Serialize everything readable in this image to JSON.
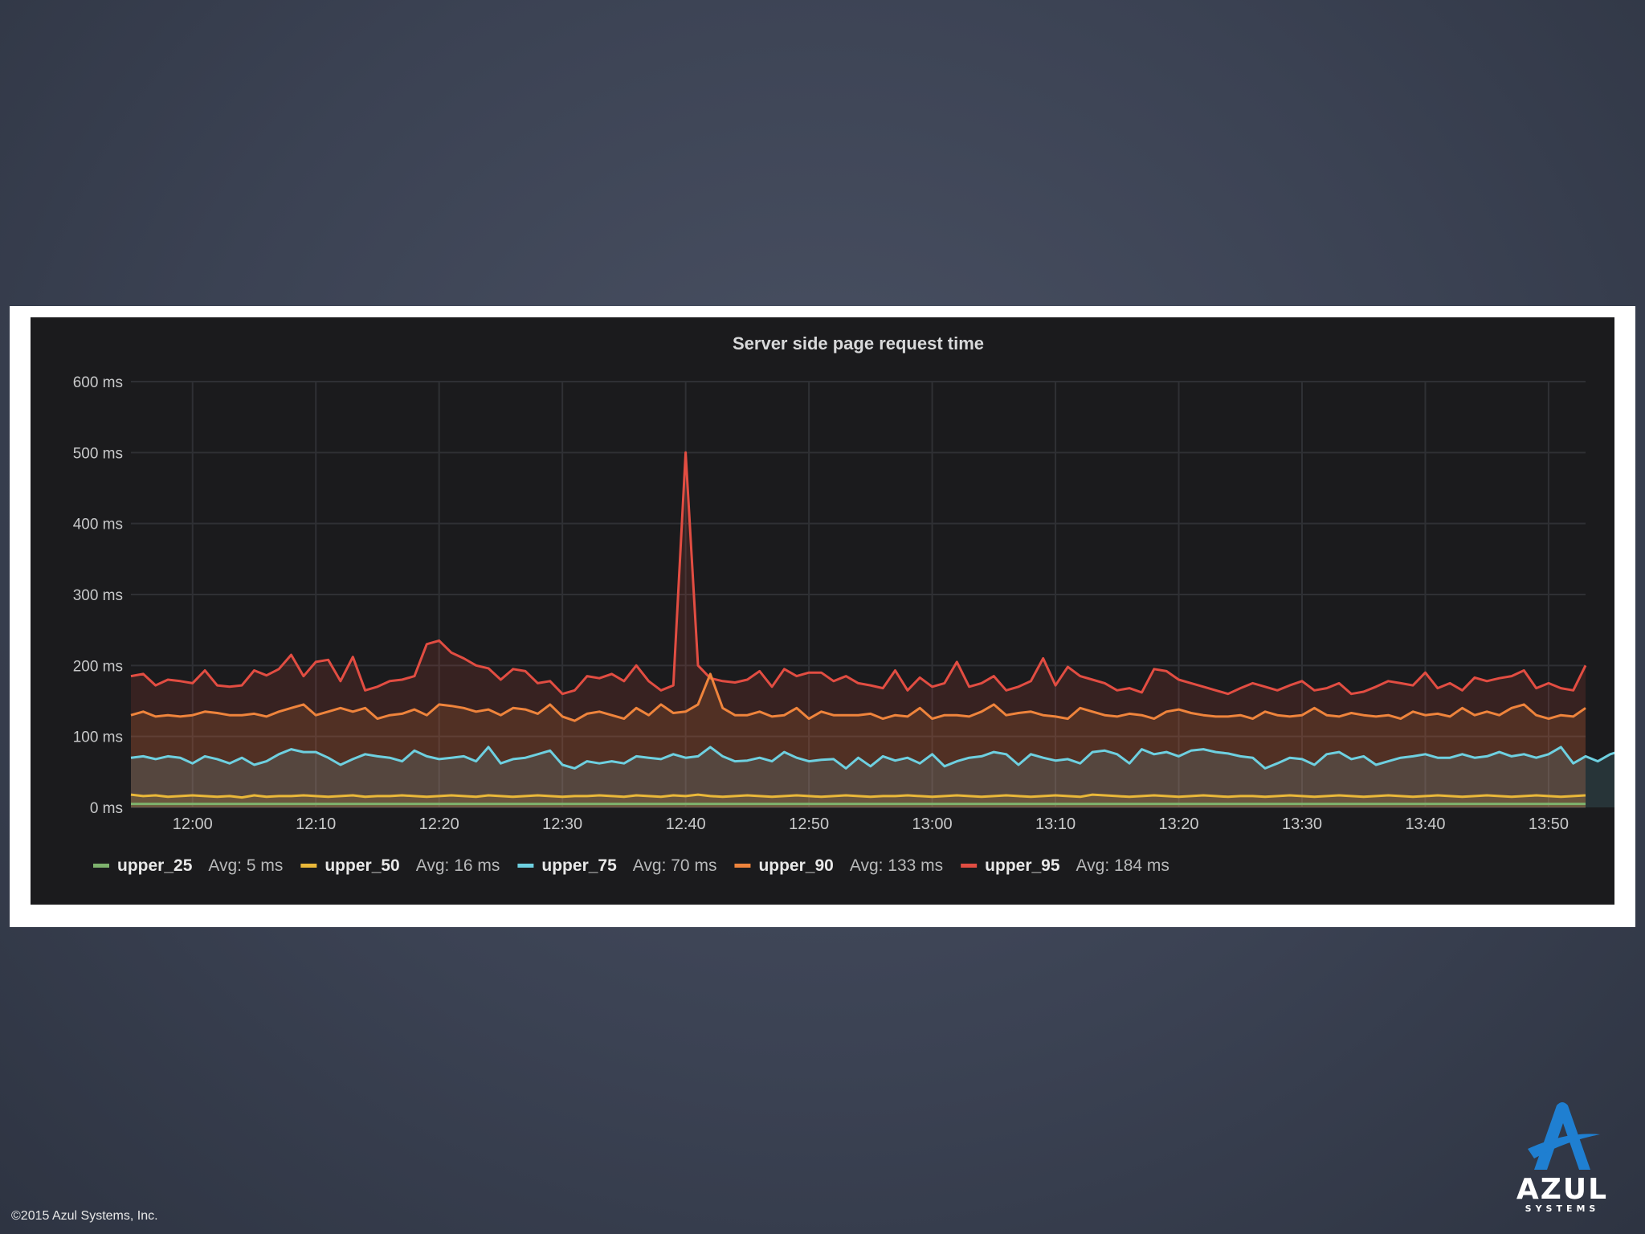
{
  "footer": {
    "copyright": "©2015 Azul Systems, Inc."
  },
  "logo": {
    "word": "AZUL",
    "sub": "SYSTEMS",
    "icon": "azul-a-logo-icon",
    "color": "#1f7fd1"
  },
  "chart_data": {
    "type": "line",
    "title": "Server side page request time",
    "ylim": [
      0,
      600
    ],
    "y_ticks": [
      "0 ms",
      "100 ms",
      "200 ms",
      "300 ms",
      "400 ms",
      "500 ms",
      "600 ms"
    ],
    "y_tick_values": [
      0,
      100,
      200,
      300,
      400,
      500,
      600
    ],
    "x_range_minutes": [
      715,
      833
    ],
    "x_ticks": [
      "12:00",
      "12:10",
      "12:20",
      "12:30",
      "12:40",
      "12:50",
      "13:00",
      "13:10",
      "13:20",
      "13:30",
      "13:40",
      "13:50"
    ],
    "grid": true,
    "legend_position": "bottom",
    "x_start": "11:55",
    "x_step_minutes": 1,
    "series": [
      {
        "name": "upper_95",
        "avg_label": "Avg: 184 ms",
        "color": "#e24d42",
        "fill": true,
        "values": [
          185,
          188,
          172,
          180,
          178,
          175,
          193,
          172,
          170,
          172,
          193,
          186,
          195,
          215,
          185,
          205,
          208,
          178,
          212,
          165,
          170,
          178,
          180,
          185,
          230,
          235,
          218,
          210,
          200,
          196,
          180,
          195,
          192,
          175,
          178,
          160,
          165,
          185,
          182,
          188,
          178,
          200,
          178,
          165,
          172,
          500,
          200,
          182,
          178,
          176,
          180,
          192,
          170,
          195,
          185,
          190,
          190,
          178,
          185,
          175,
          172,
          168,
          193,
          165,
          183,
          170,
          175,
          205,
          170,
          175,
          185,
          165,
          170,
          178,
          210,
          172,
          198,
          185,
          180,
          175,
          165,
          168,
          162,
          195,
          192,
          180,
          175,
          170,
          165,
          160,
          168,
          175,
          170,
          165,
          172,
          178,
          165,
          168,
          175,
          160,
          163,
          170,
          178,
          175,
          172,
          190,
          168,
          175,
          165,
          183,
          178,
          182,
          185,
          193,
          168,
          175,
          168,
          165,
          200
        ]
      },
      {
        "name": "upper_90",
        "avg_label": "Avg: 133 ms",
        "color": "#ef843c",
        "fill": true,
        "values": [
          130,
          135,
          128,
          130,
          128,
          130,
          135,
          133,
          130,
          130,
          132,
          128,
          135,
          140,
          145,
          130,
          135,
          140,
          135,
          140,
          125,
          130,
          132,
          138,
          130,
          145,
          143,
          140,
          135,
          138,
          130,
          140,
          138,
          132,
          145,
          128,
          122,
          132,
          135,
          130,
          125,
          140,
          130,
          145,
          133,
          135,
          145,
          188,
          140,
          130,
          130,
          135,
          128,
          130,
          140,
          125,
          135,
          130,
          130,
          130,
          132,
          125,
          130,
          128,
          140,
          125,
          130,
          130,
          128,
          135,
          145,
          130,
          133,
          135,
          130,
          128,
          125,
          140,
          135,
          130,
          128,
          132,
          130,
          125,
          135,
          138,
          133,
          130,
          128,
          128,
          130,
          125,
          135,
          130,
          128,
          130,
          140,
          130,
          128,
          133,
          130,
          128,
          130,
          125,
          135,
          130,
          132,
          128,
          140,
          130,
          135,
          130,
          140,
          145,
          130,
          125,
          130,
          128,
          140
        ]
      },
      {
        "name": "upper_75",
        "avg_label": "Avg: 70 ms",
        "color": "#6ed0e0",
        "fill": true,
        "values": [
          70,
          72,
          68,
          72,
          70,
          62,
          72,
          68,
          62,
          70,
          60,
          65,
          75,
          82,
          78,
          78,
          70,
          60,
          68,
          75,
          72,
          70,
          65,
          80,
          72,
          68,
          70,
          72,
          65,
          85,
          62,
          68,
          70,
          75,
          80,
          60,
          55,
          65,
          62,
          65,
          62,
          72,
          70,
          68,
          75,
          70,
          72,
          85,
          72,
          65,
          66,
          70,
          65,
          78,
          70,
          65,
          67,
          68,
          55,
          70,
          58,
          72,
          66,
          70,
          62,
          75,
          58,
          65,
          70,
          72,
          78,
          75,
          60,
          75,
          70,
          66,
          68,
          62,
          78,
          80,
          75,
          62,
          82,
          75,
          78,
          72,
          80,
          82,
          78,
          76,
          72,
          70,
          55,
          62,
          70,
          68,
          60,
          75,
          78,
          68,
          72,
          60,
          65,
          70,
          72,
          75,
          70,
          70,
          75,
          70,
          72,
          78,
          72,
          75,
          70,
          75,
          85,
          62,
          72,
          65,
          75,
          80
        ]
      },
      {
        "name": "upper_50",
        "avg_label": "Avg: 16 ms",
        "color": "#eab839",
        "fill": true,
        "values": [
          18,
          16,
          17,
          15,
          16,
          17,
          16,
          15,
          16,
          14,
          17,
          15,
          16,
          16,
          17,
          16,
          15,
          16,
          17,
          15,
          16,
          16,
          17,
          16,
          15,
          16,
          17,
          16,
          15,
          17,
          16,
          15,
          16,
          17,
          16,
          15,
          16,
          16,
          17,
          16,
          15,
          17,
          16,
          15,
          17,
          16,
          18,
          16,
          15,
          16,
          17,
          16,
          15,
          16,
          17,
          16,
          15,
          16,
          17,
          16,
          15,
          16,
          16,
          17,
          16,
          15,
          16,
          17,
          16,
          15,
          16,
          17,
          16,
          15,
          16,
          17,
          16,
          15,
          18,
          17,
          16,
          15,
          16,
          17,
          16,
          15,
          16,
          17,
          16,
          15,
          16,
          16,
          15,
          16,
          17,
          16,
          15,
          16,
          17,
          16,
          15,
          16,
          17,
          16,
          15,
          16,
          17,
          16,
          15,
          16,
          17,
          16,
          15,
          16,
          17,
          16,
          15,
          16,
          17
        ]
      },
      {
        "name": "upper_25",
        "avg_label": "Avg: 5 ms",
        "color": "#7eb26d",
        "fill": false,
        "values": [
          5,
          5,
          5,
          5,
          5,
          5,
          5,
          5,
          5,
          5,
          5,
          5,
          5,
          5,
          5,
          5,
          5,
          5,
          5,
          5,
          5,
          5,
          5,
          5,
          5,
          5,
          5,
          5,
          5,
          5,
          5,
          5,
          5,
          5,
          5,
          5,
          5,
          5,
          5,
          5,
          5,
          5,
          5,
          5,
          5,
          5,
          5,
          5,
          5,
          5,
          5,
          5,
          5,
          5,
          5,
          5,
          5,
          5,
          5,
          5,
          5,
          5,
          5,
          5,
          5,
          5,
          5,
          5,
          5,
          5,
          5,
          5,
          5,
          5,
          5,
          5,
          5,
          5,
          5,
          5,
          5,
          5,
          5,
          5,
          5,
          5,
          5,
          5,
          5,
          5,
          5,
          5,
          5,
          5,
          5,
          5,
          5,
          5,
          5,
          5,
          5,
          5,
          5,
          5,
          5,
          5,
          5,
          5,
          5,
          5,
          5,
          5,
          5,
          5,
          5,
          5,
          5,
          5,
          5
        ]
      }
    ],
    "legend_order": [
      "upper_25",
      "upper_50",
      "upper_75",
      "upper_90",
      "upper_95"
    ]
  }
}
